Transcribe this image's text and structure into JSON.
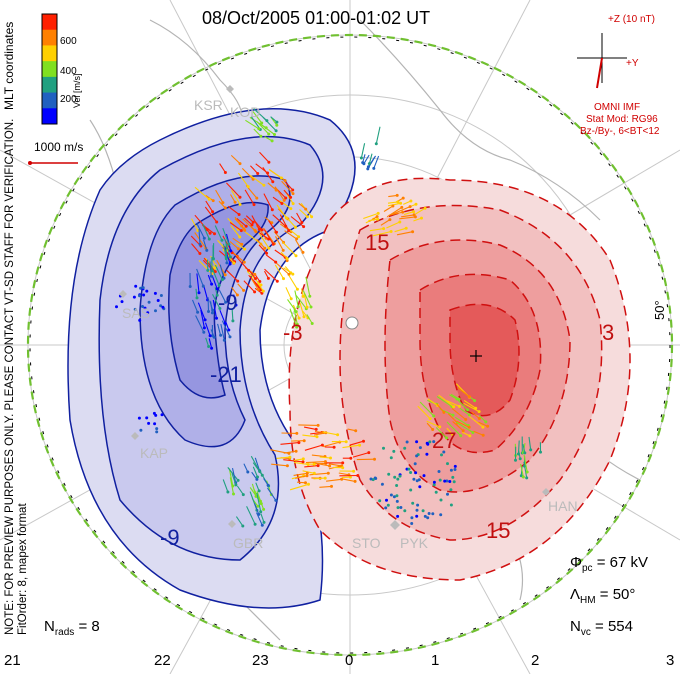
{
  "title": "08/Oct/2005 01:00-01:02 UT",
  "coordinate_system": "MLT coordinates",
  "colorbar": {
    "label": "Vel [m/s]",
    "ticks": [
      "600",
      "400",
      "200"
    ],
    "colors": [
      "#ff2000",
      "#ff8000",
      "#ffd000",
      "#80e020",
      "#20a080",
      "#2060c0",
      "#0000ff"
    ]
  },
  "reference_vector": "1000 m/s",
  "imf_clock": {
    "z_label": "+Z (10 nT)",
    "y_label": "+Y",
    "source": "OMNI IMF",
    "stat_mod": "Stat Mod: RG96",
    "condition": "Bz-/By-, 6<BT<12"
  },
  "latitude_label": "50°",
  "preview_note": "NOTE: FOR PREVIEW PURPOSES ONLY. PLEASE CONTACT VT-SD STAFF FOR VERIFICATION.",
  "fit_note": "FitOrder: 8, mapex format",
  "mlt_ticks": [
    "21",
    "22",
    "23",
    "0",
    "1",
    "2",
    "3"
  ],
  "stations": [
    "KSR",
    "KOD",
    "KAP",
    "SAS",
    "GBR",
    "STO",
    "PYK",
    "HAN"
  ],
  "contour_labels": {
    "negative": [
      "-9",
      "-21",
      "-9"
    ],
    "positive": [
      "15",
      "-3",
      "3",
      "27",
      "15"
    ]
  },
  "stats": {
    "phi_pc_label": "Φ",
    "phi_pc_sub": "pc",
    "phi_pc_value": "= 67 kV",
    "lambda_label": "Λ",
    "lambda_sub": "HM",
    "lambda_value": "= 50°",
    "nvc_label": "N",
    "nvc_sub": "vc",
    "nvc_value": "= 554",
    "nrads_label": "N",
    "nrads_sub": "rads",
    "nrads_value": "= 8"
  },
  "cell_colors": {
    "negative": "#3a3adc",
    "positive": "#e84040",
    "boundary": "#70c030"
  }
}
